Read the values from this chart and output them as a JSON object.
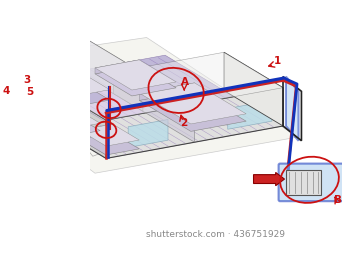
{
  "bg_color": "#ffffff",
  "wall_light": "#e8e8e8",
  "wall_mid": "#d8d8d8",
  "wall_dark": "#c8c8c8",
  "floor_purple": "#c8b0e0",
  "floor_lines": "#8060b0",
  "floor_gray": "#d0ccc8",
  "annotation_color": "#cc1111",
  "blue_pipe": "#1133bb",
  "red_pipe": "#cc2222",
  "pump_blue": "#88bbdd",
  "pump_bg": "#aaccee",
  "wall_edge": "#444444",
  "inner_wall": "#b8b0c8",
  "ceiling_color": "#f0f0f0",
  "window_color": "#bbdde8",
  "watermark": "shutterstock.com · 436751929",
  "watermark_color": "#888888",
  "watermark_fontsize": 6.5
}
